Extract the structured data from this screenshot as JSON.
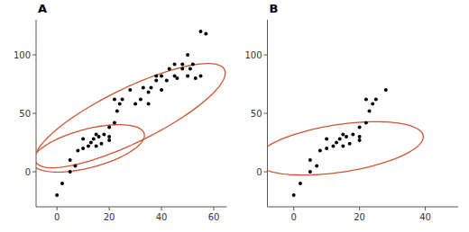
{
  "chart_data": [
    {
      "type": "scatter",
      "title": "A",
      "color": "black",
      "grid": false,
      "x": [
        0,
        2,
        5,
        5,
        7,
        8,
        10,
        10,
        12,
        13,
        14,
        15,
        15,
        16,
        17,
        18,
        20,
        20,
        20,
        22,
        22,
        23,
        24,
        25,
        28,
        30,
        32,
        33,
        35,
        35,
        36,
        38,
        38,
        40,
        40,
        42,
        43,
        45,
        45,
        46,
        48,
        48,
        50,
        50,
        51,
        52,
        53,
        55,
        55,
        57
      ],
      "values": [
        -20,
        -10,
        0,
        10,
        5,
        18,
        20,
        28,
        22,
        25,
        28,
        22,
        32,
        30,
        24,
        32,
        30,
        38,
        27,
        42,
        62,
        52,
        58,
        62,
        70,
        58,
        62,
        72,
        58,
        68,
        72,
        82,
        78,
        70,
        82,
        78,
        88,
        92,
        82,
        80,
        88,
        92,
        100,
        82,
        88,
        92,
        80,
        82,
        120,
        118
      ],
      "xlim": [
        -8,
        65
      ],
      "ylim": [
        -30,
        130
      ],
      "xticks": [
        0,
        20,
        40,
        60
      ],
      "yticks": [
        0,
        50,
        100
      ],
      "ellipses": [
        {
          "cx": 28,
          "cy": 48,
          "width": 110,
          "height": 34,
          "angle": 52,
          "color": "#CC5533"
        },
        {
          "cx": 12,
          "cy": 20,
          "width": 52,
          "height": 28,
          "angle": 42,
          "color": "#CC5533"
        }
      ]
    },
    {
      "type": "scatter",
      "title": "B",
      "color": "black",
      "grid": false,
      "x": [
        0,
        2,
        5,
        5,
        7,
        8,
        10,
        10,
        12,
        13,
        14,
        15,
        15,
        16,
        17,
        18,
        20,
        20,
        20,
        22,
        22,
        23,
        24,
        25,
        28
      ],
      "values": [
        -20,
        -10,
        0,
        10,
        5,
        18,
        20,
        28,
        22,
        25,
        28,
        22,
        32,
        30,
        24,
        32,
        30,
        38,
        27,
        42,
        62,
        52,
        58,
        62,
        70
      ],
      "xlim": [
        -8,
        50
      ],
      "ylim": [
        -30,
        130
      ],
      "xticks": [
        0,
        20,
        40
      ],
      "yticks": [
        0,
        50,
        100
      ],
      "ellipses": [
        {
          "cx": 14,
          "cy": 20,
          "width": 58,
          "height": 36,
          "angle": 38,
          "color": "#CC5533"
        }
      ]
    }
  ]
}
